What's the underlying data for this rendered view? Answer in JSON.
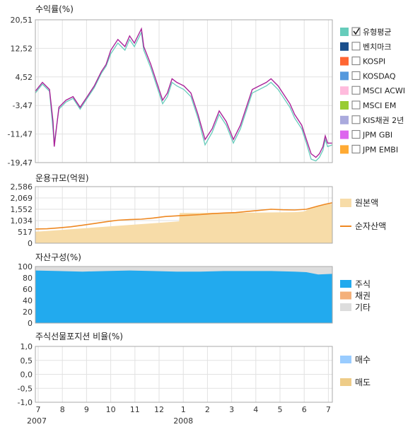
{
  "x_axis": {
    "months": [
      "7",
      "8",
      "9",
      "10",
      "11",
      "12",
      "1",
      "2",
      "3",
      "4",
      "5",
      "6",
      "7"
    ],
    "years": [
      "2007",
      "2008"
    ]
  },
  "chart_data": [
    {
      "type": "line",
      "title": "수익률(%)",
      "ylim": [
        -19.47,
        20.51
      ],
      "yticks": [
        "20,51",
        "12,52",
        "4,52",
        "-3,47",
        "-11,47",
        "-19,47"
      ],
      "x_range": [
        0,
        12.6
      ],
      "series": [
        {
          "name": "유형평균",
          "color": "#66ccbb",
          "checked": true
        },
        {
          "name": "벤치마크",
          "color": "#1a4f8c",
          "checked": false
        },
        {
          "name": "KOSPI",
          "color": "#ff6633",
          "checked": false
        },
        {
          "name": "KOSDAQ",
          "color": "#5599dd",
          "checked": false
        },
        {
          "name": "MSCI ACWI",
          "color": "#ffbbdd",
          "checked": false
        },
        {
          "name": "MSCI EM",
          "color": "#99cc33",
          "checked": false
        },
        {
          "name": "KIS채권 2년",
          "color": "#aaaadd",
          "checked": false
        },
        {
          "name": "JPM GBI",
          "color": "#dd66ee",
          "checked": false
        },
        {
          "name": "JPM EMBI",
          "color": "#ffaa33",
          "checked": false
        }
      ],
      "fund_color": "#aa2299",
      "fund_points": [
        [
          0,
          0.5
        ],
        [
          0.3,
          3
        ],
        [
          0.6,
          1
        ],
        [
          0.75,
          -8
        ],
        [
          0.8,
          -15
        ],
        [
          1.0,
          -4
        ],
        [
          1.3,
          -2
        ],
        [
          1.6,
          -1
        ],
        [
          1.9,
          -4
        ],
        [
          2.2,
          -1
        ],
        [
          2.5,
          2
        ],
        [
          2.8,
          6
        ],
        [
          3.0,
          8
        ],
        [
          3.2,
          12
        ],
        [
          3.5,
          15
        ],
        [
          3.8,
          13
        ],
        [
          4.0,
          16
        ],
        [
          4.2,
          14
        ],
        [
          4.5,
          18
        ],
        [
          4.6,
          13
        ],
        [
          4.9,
          8
        ],
        [
          5.2,
          2
        ],
        [
          5.4,
          -2
        ],
        [
          5.6,
          0
        ],
        [
          5.8,
          4
        ],
        [
          6.0,
          3
        ],
        [
          6.3,
          2
        ],
        [
          6.6,
          0
        ],
        [
          6.9,
          -6
        ],
        [
          7.2,
          -13
        ],
        [
          7.5,
          -10
        ],
        [
          7.8,
          -5
        ],
        [
          8.1,
          -8
        ],
        [
          8.4,
          -13
        ],
        [
          8.7,
          -9
        ],
        [
          9.0,
          -3
        ],
        [
          9.2,
          1
        ],
        [
          9.5,
          2
        ],
        [
          9.8,
          3
        ],
        [
          10.0,
          4
        ],
        [
          10.3,
          2
        ],
        [
          10.5,
          0
        ],
        [
          10.8,
          -3
        ],
        [
          11.0,
          -6
        ],
        [
          11.3,
          -9
        ],
        [
          11.5,
          -13
        ],
        [
          11.7,
          -17
        ],
        [
          11.9,
          -18
        ],
        [
          12.05,
          -17
        ],
        [
          12.2,
          -15
        ],
        [
          12.3,
          -12
        ],
        [
          12.4,
          -14
        ],
        [
          12.6,
          -14
        ]
      ],
      "avg_points": [
        [
          0,
          0
        ],
        [
          0.3,
          2.5
        ],
        [
          0.6,
          0.5
        ],
        [
          0.8,
          -14
        ],
        [
          1.0,
          -4.5
        ],
        [
          1.3,
          -2.5
        ],
        [
          1.6,
          -1.5
        ],
        [
          1.9,
          -4.5
        ],
        [
          2.2,
          -1.5
        ],
        [
          2.5,
          1.5
        ],
        [
          2.8,
          5.5
        ],
        [
          3.0,
          7.5
        ],
        [
          3.2,
          11
        ],
        [
          3.5,
          14
        ],
        [
          3.8,
          12
        ],
        [
          4.0,
          15
        ],
        [
          4.2,
          13
        ],
        [
          4.5,
          17
        ],
        [
          4.6,
          12
        ],
        [
          4.9,
          7
        ],
        [
          5.2,
          1
        ],
        [
          5.4,
          -3
        ],
        [
          5.6,
          -1
        ],
        [
          5.8,
          3
        ],
        [
          6.0,
          2
        ],
        [
          6.3,
          1
        ],
        [
          6.6,
          -1
        ],
        [
          6.9,
          -7
        ],
        [
          7.2,
          -14.5
        ],
        [
          7.5,
          -11
        ],
        [
          7.8,
          -6
        ],
        [
          8.1,
          -9
        ],
        [
          8.4,
          -14
        ],
        [
          8.7,
          -10
        ],
        [
          9.0,
          -4
        ],
        [
          9.2,
          0
        ],
        [
          9.5,
          1
        ],
        [
          9.8,
          2
        ],
        [
          10.0,
          3
        ],
        [
          10.3,
          1
        ],
        [
          10.5,
          -1
        ],
        [
          10.8,
          -4
        ],
        [
          11.0,
          -7
        ],
        [
          11.3,
          -10
        ],
        [
          11.5,
          -14
        ],
        [
          11.7,
          -18.5
        ],
        [
          11.9,
          -19
        ],
        [
          12.05,
          -18
        ],
        [
          12.2,
          -16
        ],
        [
          12.3,
          -13
        ],
        [
          12.4,
          -15
        ],
        [
          12.6,
          -14.5
        ]
      ]
    },
    {
      "type": "area",
      "title": "운용규모(억원)",
      "ylim": [
        0,
        2586
      ],
      "yticks": [
        "2,586",
        "2,069",
        "1,552",
        "1,034",
        "517",
        "0"
      ],
      "series": [
        {
          "name": "원본액",
          "color": "#f7dca8",
          "points": [
            [
              0,
              520
            ],
            [
              6.1,
              1000
            ],
            [
              6.12,
              1380
            ],
            [
              9.5,
              1400
            ],
            [
              11.0,
              1420
            ],
            [
              11.4,
              1450
            ],
            [
              11.6,
              1550
            ],
            [
              12.0,
              1700
            ],
            [
              12.4,
              1780
            ],
            [
              12.6,
              1800
            ]
          ]
        },
        {
          "name": "순자산액",
          "color": "#ee8822",
          "points": [
            [
              0,
              650
            ],
            [
              0.5,
              660
            ],
            [
              1.0,
              700
            ],
            [
              1.5,
              750
            ],
            [
              2.0,
              820
            ],
            [
              2.5,
              900
            ],
            [
              3.0,
              980
            ],
            [
              3.5,
              1050
            ],
            [
              4.0,
              1080
            ],
            [
              4.5,
              1100
            ],
            [
              5.0,
              1150
            ],
            [
              5.5,
              1220
            ],
            [
              6.0,
              1250
            ],
            [
              6.5,
              1280
            ],
            [
              7.0,
              1310
            ],
            [
              7.5,
              1350
            ],
            [
              8.0,
              1380
            ],
            [
              8.5,
              1400
            ],
            [
              9.0,
              1450
            ],
            [
              9.5,
              1500
            ],
            [
              10.0,
              1550
            ],
            [
              10.5,
              1530
            ],
            [
              11.0,
              1520
            ],
            [
              11.5,
              1550
            ],
            [
              12.0,
              1700
            ],
            [
              12.3,
              1780
            ],
            [
              12.6,
              1850
            ]
          ]
        }
      ]
    },
    {
      "type": "area",
      "title": "자산구성(%)",
      "ylim": [
        0,
        100
      ],
      "yticks": [
        "100",
        "80",
        "60",
        "40",
        "20",
        "0"
      ],
      "series": [
        {
          "name": "주식",
          "color": "#22aaee",
          "points": [
            [
              0,
              93
            ],
            [
              1,
              92
            ],
            [
              2,
              91
            ],
            [
              3,
              92
            ],
            [
              4,
              93
            ],
            [
              5,
              92
            ],
            [
              6,
              91
            ],
            [
              7,
              91
            ],
            [
              8,
              92
            ],
            [
              9,
              92
            ],
            [
              10,
              92
            ],
            [
              11,
              91
            ],
            [
              11.5,
              90
            ],
            [
              12,
              86
            ],
            [
              12.6,
              87
            ]
          ]
        },
        {
          "name": "채권",
          "color": "#f4b07a",
          "points": [
            [
              0,
              0
            ],
            [
              12.6,
              0
            ]
          ]
        },
        {
          "name": "기타",
          "color": "#dddddd",
          "points": [
            [
              0,
              100
            ],
            [
              12.6,
              100
            ]
          ]
        }
      ]
    },
    {
      "type": "area",
      "title": "주식선물포지션 비율(%)",
      "ylim": [
        -1.0,
        1.0
      ],
      "yticks": [
        "1,0",
        "0,5",
        "0,0",
        "-0,5",
        "-1,0"
      ],
      "series": [
        {
          "name": "매수",
          "color": "#99ccff"
        },
        {
          "name": "매도",
          "color": "#eecc88"
        }
      ]
    }
  ]
}
